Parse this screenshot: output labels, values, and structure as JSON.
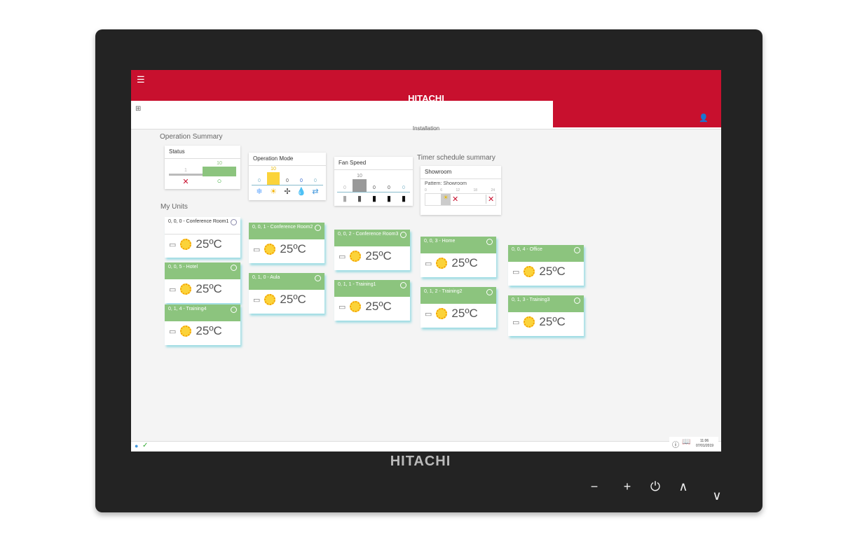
{
  "header": {
    "brand": "HITACHI",
    "location": "Installation"
  },
  "summary": {
    "title": "Operation Summary",
    "status": {
      "title": "Status",
      "values": [
        {
          "label": "stopped",
          "value": 1,
          "icon": "cross-icon"
        },
        {
          "label": "running",
          "value": 10,
          "icon": "circle-icon"
        }
      ]
    },
    "mode": {
      "title": "Operation Mode",
      "values": [
        {
          "icon": "snowflake-icon",
          "value": 0
        },
        {
          "icon": "sun-icon",
          "value": 10
        },
        {
          "icon": "fan-icon",
          "value": 0
        },
        {
          "icon": "drop-icon",
          "value": 0
        },
        {
          "icon": "auto-icon",
          "value": 0
        }
      ]
    },
    "fan": {
      "title": "Fan Speed",
      "values": [
        {
          "icon": "fan-speed-1-icon",
          "value": 0
        },
        {
          "icon": "fan-speed-2-icon",
          "value": 10
        },
        {
          "icon": "fan-speed-3-icon",
          "value": 0
        },
        {
          "icon": "fan-speed-4-icon",
          "value": 0
        },
        {
          "icon": "fan-speed-auto-icon",
          "value": 0
        }
      ]
    }
  },
  "timer": {
    "title": "Timer schedule summary",
    "card": "Showroom",
    "pattern": "Pattern: Showroom",
    "ticks": [
      "0",
      "6",
      "12",
      "18",
      "24"
    ]
  },
  "units_title": "My Units",
  "units": [
    {
      "name": "0, 0, 0 - Conference Room1",
      "temp": "25ºC",
      "selected": true
    },
    {
      "name": "0, 0, 1 - Conference Room2",
      "temp": "25ºC"
    },
    {
      "name": "0, 0, 2 - Conference Room3",
      "temp": "25ºC"
    },
    {
      "name": "0, 0, 3 - Home",
      "temp": "25ºC"
    },
    {
      "name": "0, 0, 4 - Office",
      "temp": "25ºC"
    },
    {
      "name": "0, 0, 5 - Hotel",
      "temp": "25ºC"
    },
    {
      "name": "0, 1, 0 - Aula",
      "temp": "25ºC"
    },
    {
      "name": "0, 1, 1 - Training1",
      "temp": "25ºC"
    },
    {
      "name": "0, 1, 2 - Training2",
      "temp": "25ºC"
    },
    {
      "name": "0, 1, 3 - Training3",
      "temp": "25ºC"
    },
    {
      "name": "0, 1, 4 - Training4",
      "temp": "25ºC"
    }
  ],
  "footer": {
    "time": "11:06",
    "date": "07/01/2019"
  },
  "colors": {
    "brand": "#c8102e",
    "unit_header": "#8cc47e",
    "mode_bar": "#fbd33a"
  }
}
